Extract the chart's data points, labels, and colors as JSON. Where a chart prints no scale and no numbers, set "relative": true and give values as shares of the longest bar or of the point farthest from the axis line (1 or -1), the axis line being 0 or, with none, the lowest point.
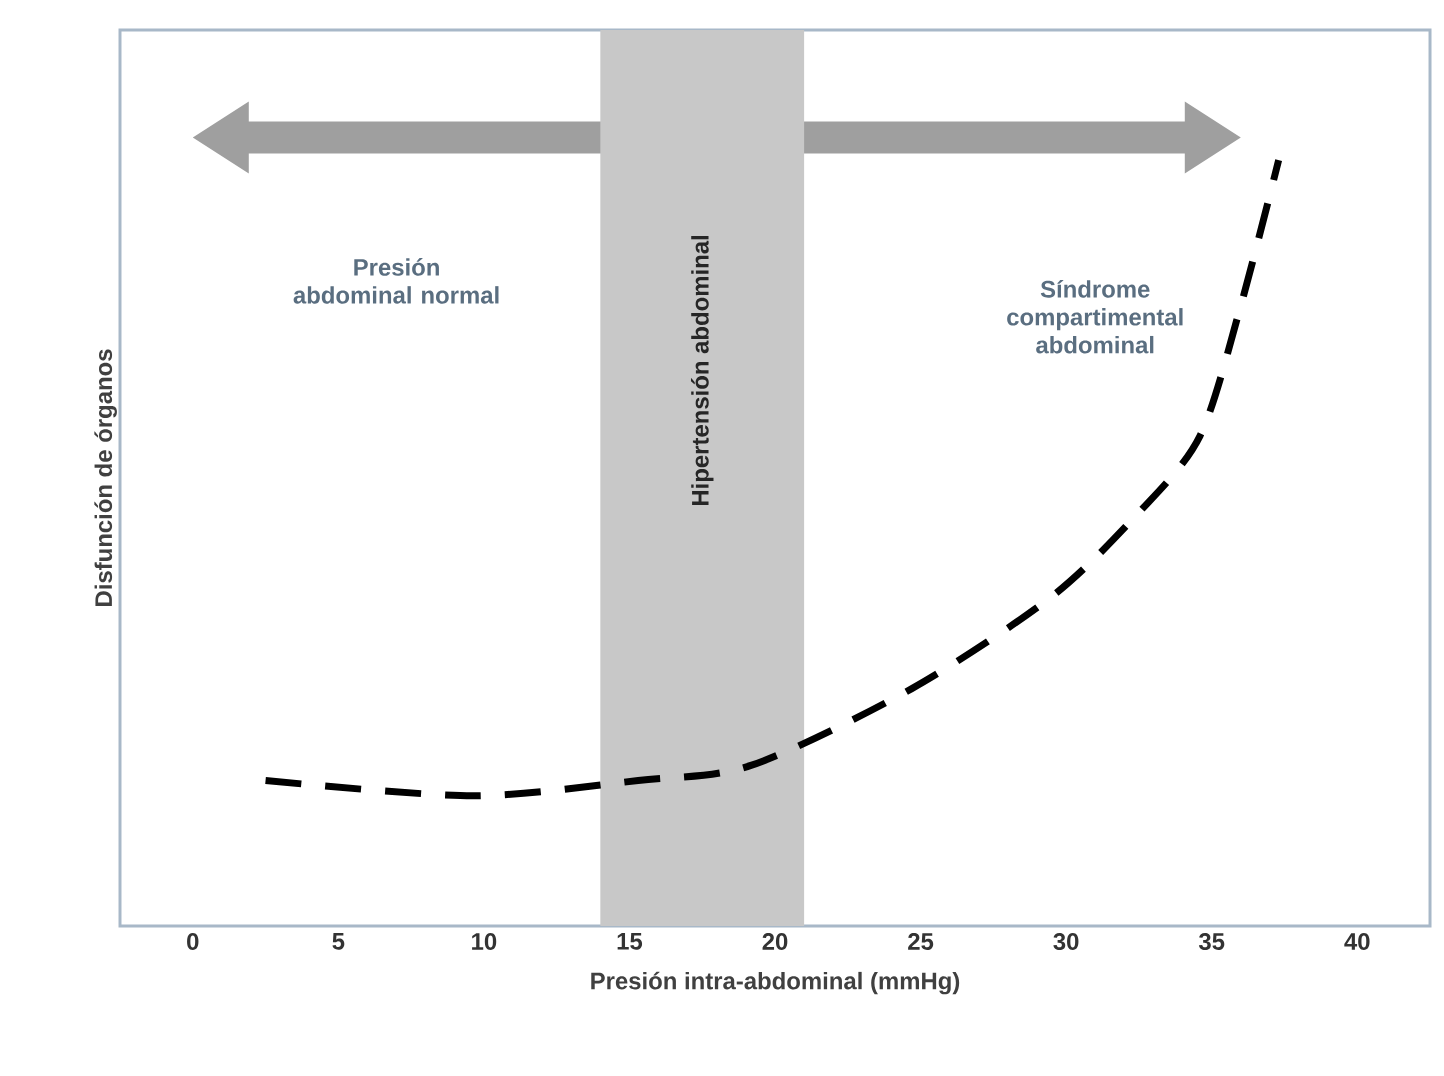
{
  "chart_data": {
    "type": "line",
    "relative": true,
    "xlabel": "Presión intra-abdominal (mmHg)",
    "ylabel": "Disfunción de órganos",
    "xlim": [
      -2.5,
      42.5
    ],
    "xticks": [
      0,
      5,
      10,
      15,
      20,
      25,
      30,
      35,
      40
    ],
    "tick_labels": "x",
    "grid": false,
    "marker": "none",
    "series": [
      {
        "color": "#000000",
        "line_style": "dashed",
        "x": [
          2.5,
          9.6,
          15.3,
          19.2,
          24.7,
          29.5,
          32.5,
          34.6,
          36.0,
          37.3
        ],
        "values": [
          0.19,
          0.17,
          0.19,
          0.21,
          0.31,
          0.43,
          0.54,
          0.64,
          0.81,
          1.0
        ]
      }
    ],
    "bands": [
      {
        "axis": "x",
        "from": 14,
        "to": 21,
        "label": "Hipertensión abdominal",
        "color": "#c8c8c8"
      }
    ],
    "annotations": [
      "Presión abdominal normal",
      "Síndrome compartimental abdominal"
    ]
  }
}
